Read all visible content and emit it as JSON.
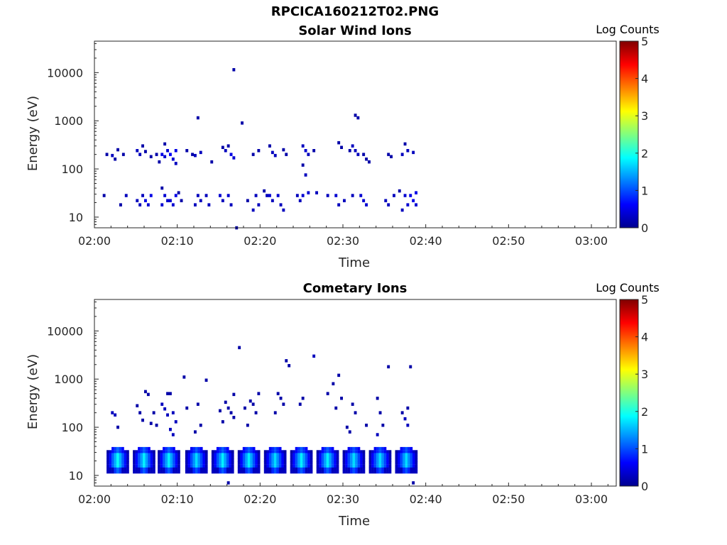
{
  "page": {
    "title": "RPCICA160212T02.PNG"
  },
  "chart_data": [
    {
      "type": "heatmap",
      "title": "Solar Wind Ions",
      "xlabel": "Time",
      "ylabel": "Energy (eV)",
      "x_ticks": [
        "02:00",
        "02:10",
        "02:20",
        "02:30",
        "02:40",
        "02:50",
        "03:00"
      ],
      "xlim": [
        "02:00",
        "03:03"
      ],
      "y_ticks": [
        10,
        100,
        1000,
        10000
      ],
      "ylim": [
        6,
        45000
      ],
      "y_scale": "log",
      "colorbar": {
        "label": "Log Counts",
        "ticks": [
          0,
          1,
          2,
          3,
          4,
          5
        ],
        "range": [
          0,
          5
        ],
        "colormap": "jet"
      },
      "points": [
        {
          "t": "02:01",
          "e": 28,
          "v": 0.2
        },
        {
          "t": "02:01",
          "e": 200,
          "v": 0.2
        },
        {
          "t": "02:02",
          "e": 250,
          "v": 0.2
        },
        {
          "t": "02:02",
          "e": 190,
          "v": 0.3
        },
        {
          "t": "02:02",
          "e": 160,
          "v": 0.2
        },
        {
          "t": "02:03",
          "e": 28,
          "v": 0.3
        },
        {
          "t": "02:03",
          "e": 18,
          "v": 0.2
        },
        {
          "t": "02:03",
          "e": 200,
          "v": 0.2
        },
        {
          "t": "02:05",
          "e": 28,
          "v": 0.3
        },
        {
          "t": "02:05",
          "e": 22,
          "v": 0.3
        },
        {
          "t": "02:05",
          "e": 18,
          "v": 0.3
        },
        {
          "t": "02:05",
          "e": 300,
          "v": 0.2
        },
        {
          "t": "02:05",
          "e": 240,
          "v": 0.3
        },
        {
          "t": "02:05",
          "e": 200,
          "v": 0.3
        },
        {
          "t": "02:06",
          "e": 28,
          "v": 0.5
        },
        {
          "t": "02:06",
          "e": 22,
          "v": 0.5
        },
        {
          "t": "02:06",
          "e": 18,
          "v": 0.4
        },
        {
          "t": "02:06",
          "e": 180,
          "v": 0.2
        },
        {
          "t": "02:06",
          "e": 230,
          "v": 0.2
        },
        {
          "t": "02:07",
          "e": 200,
          "v": 0.2
        },
        {
          "t": "02:07",
          "e": 140,
          "v": 0.2
        },
        {
          "t": "02:08",
          "e": 40,
          "v": 0.2
        },
        {
          "t": "02:08",
          "e": 28,
          "v": 0.4
        },
        {
          "t": "02:08",
          "e": 22,
          "v": 0.4
        },
        {
          "t": "02:08",
          "e": 18,
          "v": 0.4
        },
        {
          "t": "02:08",
          "e": 330,
          "v": 0.2
        },
        {
          "t": "02:08",
          "e": 240,
          "v": 0.4
        },
        {
          "t": "02:08",
          "e": 200,
          "v": 0.5
        },
        {
          "t": "02:08",
          "e": 180,
          "v": 0.4
        },
        {
          "t": "02:09",
          "e": 28,
          "v": 0.5
        },
        {
          "t": "02:09",
          "e": 22,
          "v": 0.4
        },
        {
          "t": "02:09",
          "e": 18,
          "v": 0.4
        },
        {
          "t": "02:09",
          "e": 240,
          "v": 0.5
        },
        {
          "t": "02:09",
          "e": 200,
          "v": 0.6
        },
        {
          "t": "02:09",
          "e": 160,
          "v": 0.4
        },
        {
          "t": "02:09",
          "e": 130,
          "v": 0.3
        },
        {
          "t": "02:10",
          "e": 32,
          "v": 0.2
        },
        {
          "t": "02:10",
          "e": 22,
          "v": 0.2
        },
        {
          "t": "02:11",
          "e": 200,
          "v": 0.2
        },
        {
          "t": "02:11",
          "e": 240,
          "v": 0.2
        },
        {
          "t": "02:12",
          "e": 1150,
          "v": 0.2
        },
        {
          "t": "02:12",
          "e": 220,
          "v": 0.3
        },
        {
          "t": "02:12",
          "e": 190,
          "v": 0.3
        },
        {
          "t": "02:12",
          "e": 28,
          "v": 0.3
        },
        {
          "t": "02:12",
          "e": 22,
          "v": 0.3
        },
        {
          "t": "02:12",
          "e": 18,
          "v": 0.3
        },
        {
          "t": "02:13",
          "e": 28,
          "v": 0.3
        },
        {
          "t": "02:13",
          "e": 18,
          "v": 0.3
        },
        {
          "t": "02:14",
          "e": 140,
          "v": 0.2
        },
        {
          "t": "02:15",
          "e": 280,
          "v": 0.2
        },
        {
          "t": "02:15",
          "e": 240,
          "v": 0.3
        },
        {
          "t": "02:15",
          "e": 28,
          "v": 0.4
        },
        {
          "t": "02:15",
          "e": 22,
          "v": 0.3
        },
        {
          "t": "02:16",
          "e": 11500,
          "v": 0.2
        },
        {
          "t": "02:16",
          "e": 300,
          "v": 0.2
        },
        {
          "t": "02:16",
          "e": 200,
          "v": 0.5
        },
        {
          "t": "02:16",
          "e": 170,
          "v": 0.4
        },
        {
          "t": "02:16",
          "e": 28,
          "v": 0.4
        },
        {
          "t": "02:16",
          "e": 18,
          "v": 0.3
        },
        {
          "t": "02:17",
          "e": 900,
          "v": 0.2
        },
        {
          "t": "02:17",
          "e": 6,
          "v": 0.2
        },
        {
          "t": "02:18",
          "e": 22,
          "v": 0.2
        },
        {
          "t": "02:19",
          "e": 240,
          "v": 0.2
        },
        {
          "t": "02:19",
          "e": 200,
          "v": 0.2
        },
        {
          "t": "02:19",
          "e": 28,
          "v": 0.3
        },
        {
          "t": "02:19",
          "e": 18,
          "v": 0.3
        },
        {
          "t": "02:19",
          "e": 14,
          "v": 0.3
        },
        {
          "t": "02:20",
          "e": 35,
          "v": 0.2
        },
        {
          "t": "02:20",
          "e": 28,
          "v": 0.3
        },
        {
          "t": "02:21",
          "e": 300,
          "v": 0.2
        },
        {
          "t": "02:21",
          "e": 220,
          "v": 0.3
        },
        {
          "t": "02:21",
          "e": 190,
          "v": 0.3
        },
        {
          "t": "02:21",
          "e": 28,
          "v": 0.4
        },
        {
          "t": "02:21",
          "e": 22,
          "v": 0.3
        },
        {
          "t": "02:22",
          "e": 250,
          "v": 0.2
        },
        {
          "t": "02:22",
          "e": 28,
          "v": 0.4
        },
        {
          "t": "02:22",
          "e": 18,
          "v": 0.3
        },
        {
          "t": "02:22",
          "e": 14,
          "v": 0.3
        },
        {
          "t": "02:23",
          "e": 200,
          "v": 0.2
        },
        {
          "t": "02:24",
          "e": 28,
          "v": 0.3
        },
        {
          "t": "02:24",
          "e": 22,
          "v": 0.3
        },
        {
          "t": "02:25",
          "e": 300,
          "v": 0.3
        },
        {
          "t": "02:25",
          "e": 240,
          "v": 0.4
        },
        {
          "t": "02:25",
          "e": 200,
          "v": 0.3
        },
        {
          "t": "02:25",
          "e": 120,
          "v": 0.2
        },
        {
          "t": "02:25",
          "e": 75,
          "v": 0.3
        },
        {
          "t": "02:25",
          "e": 32,
          "v": 0.4
        },
        {
          "t": "02:25",
          "e": 28,
          "v": 0.4
        },
        {
          "t": "02:26",
          "e": 240,
          "v": 0.2
        },
        {
          "t": "02:26",
          "e": 32,
          "v": 0.3
        },
        {
          "t": "02:28",
          "e": 28,
          "v": 0.3
        },
        {
          "t": "02:29",
          "e": 350,
          "v": 0.2
        },
        {
          "t": "02:29",
          "e": 280,
          "v": 0.2
        },
        {
          "t": "02:29",
          "e": 28,
          "v": 0.4
        },
        {
          "t": "02:29",
          "e": 18,
          "v": 0.3
        },
        {
          "t": "02:30",
          "e": 240,
          "v": 0.2
        },
        {
          "t": "02:30",
          "e": 22,
          "v": 0.3
        },
        {
          "t": "02:31",
          "e": 1300,
          "v": 0.2
        },
        {
          "t": "02:31",
          "e": 1150,
          "v": 0.2
        },
        {
          "t": "02:31",
          "e": 300,
          "v": 0.3
        },
        {
          "t": "02:31",
          "e": 240,
          "v": 0.3
        },
        {
          "t": "02:31",
          "e": 200,
          "v": 0.3
        },
        {
          "t": "02:31",
          "e": 28,
          "v": 0.3
        },
        {
          "t": "02:32",
          "e": 200,
          "v": 0.2
        },
        {
          "t": "02:32",
          "e": 160,
          "v": 0.2
        },
        {
          "t": "02:32",
          "e": 28,
          "v": 0.4
        },
        {
          "t": "02:32",
          "e": 22,
          "v": 0.4
        },
        {
          "t": "02:32",
          "e": 18,
          "v": 0.4
        },
        {
          "t": "02:33",
          "e": 140,
          "v": 0.2
        },
        {
          "t": "02:35",
          "e": 200,
          "v": 0.2
        },
        {
          "t": "02:35",
          "e": 180,
          "v": 0.2
        },
        {
          "t": "02:35",
          "e": 22,
          "v": 0.3
        },
        {
          "t": "02:35",
          "e": 18,
          "v": 0.3
        },
        {
          "t": "02:36",
          "e": 35,
          "v": 0.2
        },
        {
          "t": "02:36",
          "e": 28,
          "v": 0.3
        },
        {
          "t": "02:37",
          "e": 330,
          "v": 0.2
        },
        {
          "t": "02:37",
          "e": 240,
          "v": 0.3
        },
        {
          "t": "02:37",
          "e": 200,
          "v": 0.3
        },
        {
          "t": "02:37",
          "e": 28,
          "v": 0.4
        },
        {
          "t": "02:37",
          "e": 18,
          "v": 0.4
        },
        {
          "t": "02:37",
          "e": 14,
          "v": 0.3
        },
        {
          "t": "02:38",
          "e": 220,
          "v": 0.3
        },
        {
          "t": "02:38",
          "e": 32,
          "v": 0.5
        },
        {
          "t": "02:38",
          "e": 28,
          "v": 0.5
        },
        {
          "t": "02:38",
          "e": 22,
          "v": 0.5
        },
        {
          "t": "02:38",
          "e": 18,
          "v": 0.4
        }
      ]
    },
    {
      "type": "heatmap",
      "title": "Cometary Ions",
      "xlabel": "Time",
      "ylabel": "Energy (eV)",
      "x_ticks": [
        "02:00",
        "02:10",
        "02:20",
        "02:30",
        "02:40",
        "02:50",
        "03:00"
      ],
      "xlim": [
        "02:00",
        "03:03"
      ],
      "y_ticks": [
        10,
        100,
        1000,
        10000
      ],
      "ylim": [
        6,
        45000
      ],
      "y_scale": "log",
      "colorbar": {
        "label": "Log Counts",
        "ticks": [
          0,
          1,
          2,
          3,
          4,
          5
        ],
        "range": [
          0,
          5
        ],
        "colormap": "jet"
      },
      "bursts": [
        {
          "t": "02:02:40",
          "peak": 1.9
        },
        {
          "t": "02:05:50",
          "peak": 1.8
        },
        {
          "t": "02:08:50",
          "peak": 1.8
        },
        {
          "t": "02:12:10",
          "peak": 1.7
        },
        {
          "t": "02:15:20",
          "peak": 1.8
        },
        {
          "t": "02:18:30",
          "peak": 1.8
        },
        {
          "t": "02:21:40",
          "peak": 1.7
        },
        {
          "t": "02:24:50",
          "peak": 1.8
        },
        {
          "t": "02:28:00",
          "peak": 1.8
        },
        {
          "t": "02:31:10",
          "peak": 1.7
        },
        {
          "t": "02:34:20",
          "peak": 1.7
        },
        {
          "t": "02:37:30",
          "peak": 1.7
        }
      ],
      "points": [
        {
          "t": "02:02",
          "e": 200,
          "v": 0.3
        },
        {
          "t": "02:02",
          "e": 180,
          "v": 0.3
        },
        {
          "t": "02:02",
          "e": 100,
          "v": 0.2
        },
        {
          "t": "02:05",
          "e": 280,
          "v": 0.2
        },
        {
          "t": "02:05",
          "e": 200,
          "v": 0.2
        },
        {
          "t": "02:05",
          "e": 140,
          "v": 0.2
        },
        {
          "t": "02:06",
          "e": 550,
          "v": 0.2
        },
        {
          "t": "02:06",
          "e": 480,
          "v": 0.2
        },
        {
          "t": "02:06",
          "e": 120,
          "v": 0.2
        },
        {
          "t": "02:07",
          "e": 200,
          "v": 0.2
        },
        {
          "t": "02:07",
          "e": 110,
          "v": 0.2
        },
        {
          "t": "02:08",
          "e": 500,
          "v": 0.2
        },
        {
          "t": "02:08",
          "e": 300,
          "v": 0.3
        },
        {
          "t": "02:08",
          "e": 240,
          "v": 0.3
        },
        {
          "t": "02:08",
          "e": 180,
          "v": 0.3
        },
        {
          "t": "02:09",
          "e": 500,
          "v": 0.2
        },
        {
          "t": "02:09",
          "e": 200,
          "v": 0.3
        },
        {
          "t": "02:09",
          "e": 130,
          "v": 0.3
        },
        {
          "t": "02:09",
          "e": 90,
          "v": 0.3
        },
        {
          "t": "02:09",
          "e": 70,
          "v": 0.3
        },
        {
          "t": "02:10",
          "e": 1100,
          "v": 0.2
        },
        {
          "t": "02:11",
          "e": 250,
          "v": 0.2
        },
        {
          "t": "02:12",
          "e": 300,
          "v": 0.2
        },
        {
          "t": "02:12",
          "e": 110,
          "v": 0.2
        },
        {
          "t": "02:12",
          "e": 80,
          "v": 0.2
        },
        {
          "t": "02:13",
          "e": 950,
          "v": 0.2
        },
        {
          "t": "02:15",
          "e": 330,
          "v": 0.2
        },
        {
          "t": "02:15",
          "e": 220,
          "v": 0.2
        },
        {
          "t": "02:15",
          "e": 130,
          "v": 0.2
        },
        {
          "t": "02:16",
          "e": 480,
          "v": 0.2
        },
        {
          "t": "02:16",
          "e": 250,
          "v": 0.2
        },
        {
          "t": "02:16",
          "e": 200,
          "v": 0.2
        },
        {
          "t": "02:16",
          "e": 160,
          "v": 0.2
        },
        {
          "t": "02:16",
          "e": 7,
          "v": 0.2
        },
        {
          "t": "02:17",
          "e": 4500,
          "v": 0.2
        },
        {
          "t": "02:18",
          "e": 350,
          "v": 0.2
        },
        {
          "t": "02:18",
          "e": 250,
          "v": 0.2
        },
        {
          "t": "02:18",
          "e": 110,
          "v": 0.2
        },
        {
          "t": "02:19",
          "e": 500,
          "v": 0.2
        },
        {
          "t": "02:19",
          "e": 300,
          "v": 0.2
        },
        {
          "t": "02:19",
          "e": 200,
          "v": 0.2
        },
        {
          "t": "02:21",
          "e": 200,
          "v": 0.2
        },
        {
          "t": "02:22",
          "e": 500,
          "v": 0.2
        },
        {
          "t": "02:22",
          "e": 400,
          "v": 0.2
        },
        {
          "t": "02:22",
          "e": 300,
          "v": 0.2
        },
        {
          "t": "02:23",
          "e": 2400,
          "v": 0.2
        },
        {
          "t": "02:23",
          "e": 1900,
          "v": 0.2
        },
        {
          "t": "02:24",
          "e": 300,
          "v": 0.2
        },
        {
          "t": "02:25",
          "e": 400,
          "v": 0.2
        },
        {
          "t": "02:26",
          "e": 3000,
          "v": 0.3
        },
        {
          "t": "02:28",
          "e": 800,
          "v": 0.2
        },
        {
          "t": "02:28",
          "e": 500,
          "v": 0.2
        },
        {
          "t": "02:29",
          "e": 1200,
          "v": 0.2
        },
        {
          "t": "02:29",
          "e": 400,
          "v": 0.2
        },
        {
          "t": "02:29",
          "e": 250,
          "v": 0.2
        },
        {
          "t": "02:30",
          "e": 100,
          "v": 0.2
        },
        {
          "t": "02:30",
          "e": 80,
          "v": 0.2
        },
        {
          "t": "02:31",
          "e": 300,
          "v": 0.2
        },
        {
          "t": "02:31",
          "e": 200,
          "v": 0.2
        },
        {
          "t": "02:32",
          "e": 110,
          "v": 0.2
        },
        {
          "t": "02:34",
          "e": 400,
          "v": 0.2
        },
        {
          "t": "02:34",
          "e": 200,
          "v": 0.2
        },
        {
          "t": "02:34",
          "e": 110,
          "v": 0.2
        },
        {
          "t": "02:34",
          "e": 70,
          "v": 0.3
        },
        {
          "t": "02:35",
          "e": 1800,
          "v": 0.2
        },
        {
          "t": "02:37",
          "e": 250,
          "v": 0.2
        },
        {
          "t": "02:37",
          "e": 200,
          "v": 0.2
        },
        {
          "t": "02:37",
          "e": 150,
          "v": 0.3
        },
        {
          "t": "02:37",
          "e": 110,
          "v": 0.3
        },
        {
          "t": "02:38",
          "e": 1800,
          "v": 0.2
        },
        {
          "t": "02:38",
          "e": 7,
          "v": 0.2
        }
      ]
    }
  ]
}
